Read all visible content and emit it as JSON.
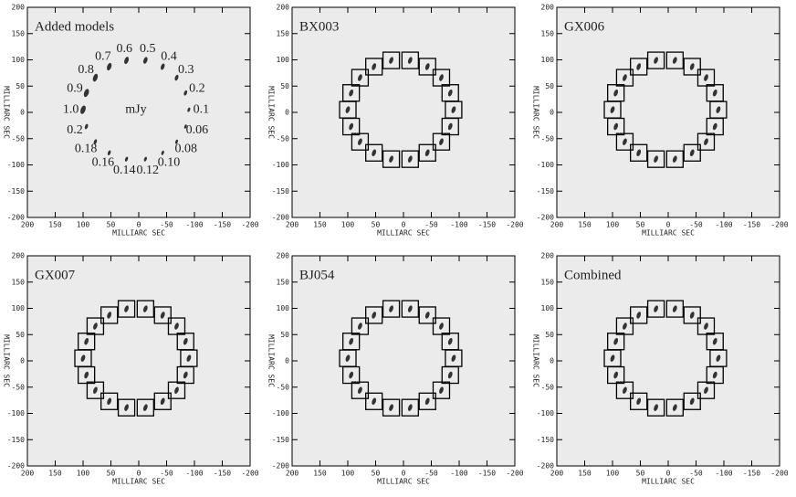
{
  "chart_data": [
    {
      "type": "scatter",
      "title": "Added models",
      "xlabel": "MILLIARC SEC",
      "ylabel": "MILLIARC SEC",
      "x": [
        100,
        94,
        78,
        53,
        22,
        -12,
        -43,
        -68,
        -84,
        -90,
        -84,
        -68,
        -43,
        -12,
        22,
        53,
        78,
        94
      ],
      "y": [
        5,
        37,
        66,
        87,
        99,
        99,
        87,
        66,
        37,
        5,
        -27,
        -56,
        -77,
        -89,
        -89,
        -77,
        -56,
        -27
      ],
      "values": [
        1.0,
        0.9,
        0.8,
        0.7,
        0.6,
        0.5,
        0.4,
        0.3,
        0.2,
        0.1,
        0.06,
        0.08,
        0.1,
        0.12,
        0.14,
        0.16,
        0.18,
        0.2
      ],
      "value_labels": [
        "1.0",
        "0.9",
        "0.8",
        "0.7",
        "0.6",
        "0.5",
        "0.4",
        "0.3",
        "0.2",
        "0.1",
        "0.06",
        "0.08",
        "0.10",
        "0.12",
        "0.14",
        "0.16",
        "0.18",
        "0.2"
      ],
      "annotations": [
        "mJy"
      ],
      "boxes": false,
      "xlim": [
        200,
        -200
      ],
      "ylim": [
        -200,
        200
      ],
      "xticks": [
        200,
        150,
        100,
        50,
        0,
        -50,
        -100,
        -150,
        -200
      ],
      "yticks": [
        -200,
        -150,
        -100,
        -50,
        0,
        50,
        100,
        150,
        200
      ]
    },
    {
      "type": "scatter",
      "title": "BX003",
      "xlabel": "MILLIARC SEC",
      "ylabel": "MILLIARC SEC",
      "x": [
        100,
        94,
        78,
        53,
        22,
        -12,
        -43,
        -68,
        -84,
        -90,
        -84,
        -68,
        -43,
        -12,
        22,
        53,
        78,
        94
      ],
      "y": [
        5,
        37,
        66,
        87,
        99,
        99,
        87,
        66,
        37,
        5,
        -27,
        -56,
        -77,
        -89,
        -89,
        -77,
        -56,
        -27
      ],
      "boxes": true,
      "xlim": [
        200,
        -200
      ],
      "ylim": [
        -200,
        200
      ],
      "xticks": [
        200,
        150,
        100,
        50,
        0,
        -50,
        -100,
        -150,
        -200
      ],
      "yticks": [
        -200,
        -150,
        -100,
        -50,
        0,
        50,
        100,
        150,
        200
      ]
    },
    {
      "type": "scatter",
      "title": "GX006",
      "xlabel": "MILLIARC SEC",
      "ylabel": "MILLIARC SEC",
      "x": [
        100,
        94,
        78,
        53,
        22,
        -12,
        -43,
        -68,
        -84,
        -90,
        -84,
        -68,
        -43,
        -12,
        22,
        53,
        78,
        94
      ],
      "y": [
        5,
        37,
        66,
        87,
        99,
        99,
        87,
        66,
        37,
        5,
        -27,
        -56,
        -77,
        -89,
        -89,
        -77,
        -56,
        -27
      ],
      "boxes": true,
      "xlim": [
        200,
        -200
      ],
      "ylim": [
        -200,
        200
      ],
      "xticks": [
        200,
        150,
        100,
        50,
        0,
        -50,
        -100,
        -150,
        -200
      ],
      "yticks": [
        -200,
        -150,
        -100,
        -50,
        0,
        50,
        100,
        150,
        200
      ]
    },
    {
      "type": "scatter",
      "title": "GX007",
      "xlabel": "MILLIARC SEC",
      "ylabel": "MILLIARC SEC",
      "x": [
        100,
        94,
        78,
        53,
        22,
        -12,
        -43,
        -68,
        -84,
        -90,
        -84,
        -68,
        -43,
        -12,
        22,
        53,
        78,
        94
      ],
      "y": [
        5,
        37,
        66,
        87,
        99,
        99,
        87,
        66,
        37,
        5,
        -27,
        -56,
        -77,
        -89,
        -89,
        -77,
        -56,
        -27
      ],
      "boxes": true,
      "xlim": [
        200,
        -200
      ],
      "ylim": [
        -200,
        200
      ],
      "xticks": [
        200,
        150,
        100,
        50,
        0,
        -50,
        -100,
        -150,
        -200
      ],
      "yticks": [
        -200,
        -150,
        -100,
        -50,
        0,
        50,
        100,
        150,
        200
      ]
    },
    {
      "type": "scatter",
      "title": "BJ054",
      "xlabel": "MILLIARC SEC",
      "ylabel": "MILLIARC SEC",
      "x": [
        100,
        94,
        78,
        53,
        22,
        -12,
        -43,
        -68,
        -84,
        -90,
        -84,
        -68,
        -43,
        -12,
        22,
        53,
        78,
        94
      ],
      "y": [
        5,
        37,
        66,
        87,
        99,
        99,
        87,
        66,
        37,
        5,
        -27,
        -56,
        -77,
        -89,
        -89,
        -77,
        -56,
        -27
      ],
      "boxes": true,
      "xlim": [
        200,
        -200
      ],
      "ylim": [
        -200,
        200
      ],
      "xticks": [
        200,
        150,
        100,
        50,
        0,
        -50,
        -100,
        -150,
        -200
      ],
      "yticks": [
        -200,
        -150,
        -100,
        -50,
        0,
        50,
        100,
        150,
        200
      ]
    },
    {
      "type": "scatter",
      "title": "Combined",
      "xlabel": "MILLIARC SEC",
      "ylabel": "MILLIARC SEC",
      "x": [
        100,
        94,
        78,
        53,
        22,
        -12,
        -43,
        -68,
        -84,
        -90,
        -84,
        -68,
        -43,
        -12,
        22,
        53,
        78,
        94
      ],
      "y": [
        5,
        37,
        66,
        87,
        99,
        99,
        87,
        66,
        37,
        5,
        -27,
        -56,
        -77,
        -89,
        -89,
        -77,
        -56,
        -27
      ],
      "boxes": true,
      "xlim": [
        200,
        -200
      ],
      "ylim": [
        -200,
        200
      ],
      "xticks": [
        200,
        150,
        100,
        50,
        0,
        -50,
        -100,
        -150,
        -200
      ],
      "yticks": [
        -200,
        -150,
        -100,
        -50,
        0,
        50,
        100,
        150,
        200
      ]
    }
  ]
}
